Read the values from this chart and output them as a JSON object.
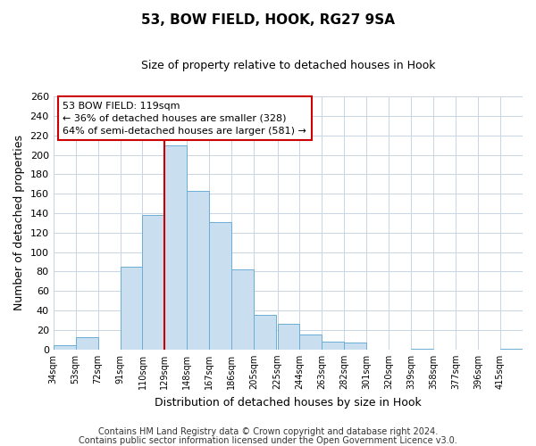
{
  "title": "53, BOW FIELD, HOOK, RG27 9SA",
  "subtitle": "Size of property relative to detached houses in Hook",
  "xlabel": "Distribution of detached houses by size in Hook",
  "ylabel": "Number of detached properties",
  "footer_line1": "Contains HM Land Registry data © Crown copyright and database right 2024.",
  "footer_line2": "Contains public sector information licensed under the Open Government Licence v3.0.",
  "bar_color": "#c9dff0",
  "bar_edge_color": "#6aaed6",
  "grid_color": "#c8d4e0",
  "background_color": "#ffffff",
  "annotation_box_color": "#ffffff",
  "annotation_box_edge": "#cc0000",
  "vline_color": "#cc0000",
  "annotation_title": "53 BOW FIELD: 119sqm",
  "annotation_line1": "← 36% of detached houses are smaller (328)",
  "annotation_line2": "64% of semi-detached houses are larger (581) →",
  "categories": [
    "34sqm",
    "53sqm",
    "72sqm",
    "91sqm",
    "110sqm",
    "129sqm",
    "148sqm",
    "167sqm",
    "186sqm",
    "205sqm",
    "225sqm",
    "244sqm",
    "263sqm",
    "282sqm",
    "301sqm",
    "320sqm",
    "339sqm",
    "358sqm",
    "377sqm",
    "396sqm",
    "415sqm"
  ],
  "bin_edges": [
    34,
    53,
    72,
    91,
    110,
    129,
    148,
    167,
    186,
    205,
    225,
    244,
    263,
    282,
    301,
    320,
    339,
    358,
    377,
    396,
    415
  ],
  "bin_width": 19,
  "values": [
    4,
    13,
    0,
    85,
    138,
    210,
    163,
    131,
    82,
    36,
    26,
    15,
    8,
    7,
    0,
    0,
    1,
    0,
    0,
    0,
    1
  ],
  "ylim": [
    0,
    260
  ],
  "yticks": [
    0,
    20,
    40,
    60,
    80,
    100,
    120,
    140,
    160,
    180,
    200,
    220,
    240,
    260
  ],
  "vline_x_bin_index": 4,
  "footer_fontsize": 7,
  "title_fontsize": 11,
  "subtitle_fontsize": 9,
  "axis_label_fontsize": 9,
  "ytick_fontsize": 8,
  "xtick_fontsize": 7
}
